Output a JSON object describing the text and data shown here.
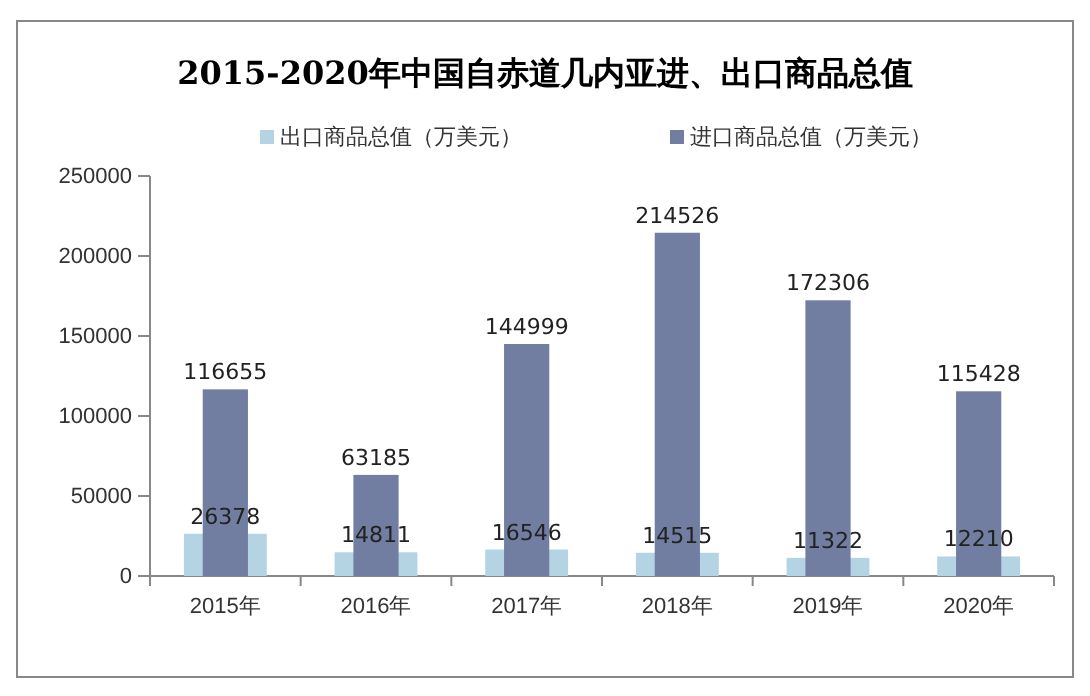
{
  "chart_data": {
    "type": "bar",
    "title": "2015-2020年中国自赤道几内亚进、出口商品总值",
    "categories": [
      "2015年",
      "2016年",
      "2017年",
      "2018年",
      "2019年",
      "2020年"
    ],
    "series": [
      {
        "name": "出口商品总值（万美元）",
        "color": "#b4d3e3",
        "values": [
          26378,
          14811,
          16546,
          14515,
          11322,
          12210
        ]
      },
      {
        "name": "进口商品总值（万美元）",
        "color": "#717da1",
        "values": [
          116655,
          63185,
          144999,
          214526,
          172306,
          115428
        ]
      }
    ],
    "ylim": [
      0,
      250000
    ],
    "yticks": [
      0,
      50000,
      100000,
      150000,
      200000,
      250000
    ],
    "grid": false,
    "legend": "top",
    "data_labels": true
  }
}
